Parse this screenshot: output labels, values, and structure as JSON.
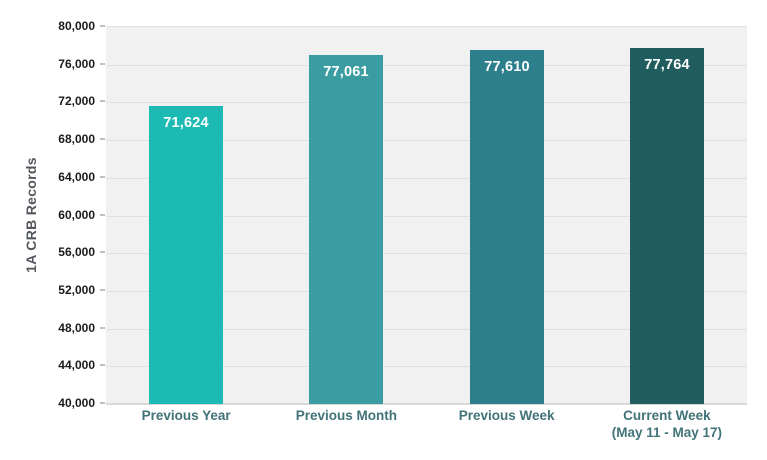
{
  "chart_data": {
    "type": "bar",
    "categories": [
      {
        "lines": [
          "Previous Year"
        ]
      },
      {
        "lines": [
          "Previous Month"
        ]
      },
      {
        "lines": [
          "Previous Week"
        ]
      },
      {
        "lines": [
          "Current Week",
          "(May 11 - May 17)"
        ]
      }
    ],
    "values": [
      71624,
      77061,
      77610,
      77764
    ],
    "value_labels": [
      "71,624",
      "77,061",
      "77,610",
      "77,764"
    ],
    "bar_colors": [
      "#1cbab3",
      "#3b9da1",
      "#2e7f8c",
      "#215c5f"
    ],
    "title": "",
    "xlabel": "",
    "ylabel": "1A CRB Records",
    "ylim": [
      40000,
      80000
    ],
    "ytick_step": 4000,
    "ytick_labels": [
      "80,000",
      "76,000",
      "72,000",
      "68,000",
      "64,000",
      "60,000",
      "56,000",
      "52,000",
      "48,000",
      "44,000",
      "40,000"
    ],
    "grid": true,
    "legend": "none",
    "plot_bg_color": "#f1f1f1",
    "gridline_color": "#e0e0e0",
    "value_label_color": "#ffffff",
    "ytick_color": "#1a1a1a",
    "category_label_color": "#417379",
    "ylabel_color": "#54585e"
  }
}
